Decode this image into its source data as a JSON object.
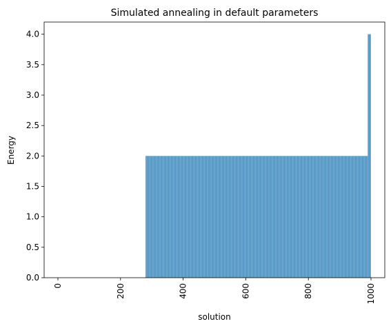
{
  "chart_data": {
    "type": "bar",
    "title": "Simulated annealing in default parameters",
    "xlabel": "solution",
    "ylabel": "Energy",
    "xlim": [
      -44,
      1044
    ],
    "ylim": [
      0,
      4.2
    ],
    "xticks": [
      0,
      200,
      400,
      600,
      800,
      1000
    ],
    "xtick_labels": [
      "0",
      "200",
      "400",
      "600",
      "800",
      "1000"
    ],
    "yticks": [
      0.0,
      0.5,
      1.0,
      1.5,
      2.0,
      2.5,
      3.0,
      3.5,
      4.0
    ],
    "ytick_labels": [
      "0.0",
      "0.5",
      "1.0",
      "1.5",
      "2.0",
      "2.5",
      "3.0",
      "3.5",
      "4.0"
    ],
    "xtick_rotation": 90,
    "grid": false,
    "bar_color": "#1f77b4",
    "segments": [
      {
        "x_start": 0,
        "x_end": 279,
        "value": 0
      },
      {
        "x_start": 280,
        "x_end": 989,
        "value": 2
      },
      {
        "x_start": 990,
        "x_end": 999,
        "value": 4
      }
    ]
  }
}
